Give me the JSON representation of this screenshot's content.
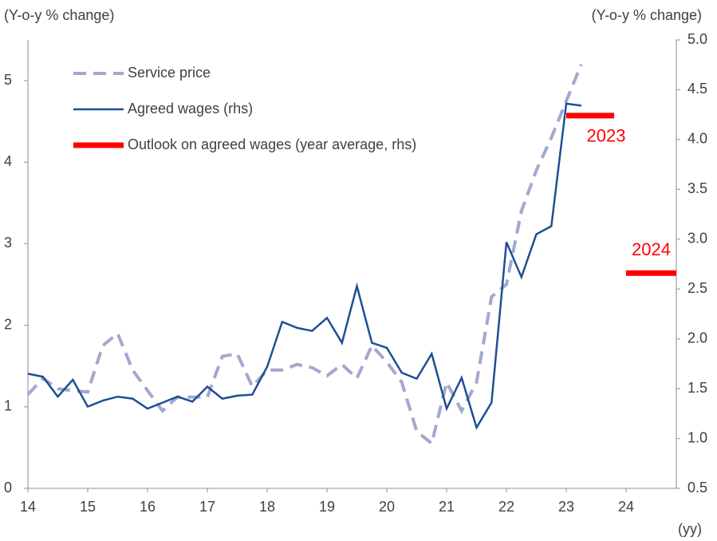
{
  "chart_data": {
    "type": "line",
    "y_label": "(Y-o-y % change)",
    "y2_label": "(Y-o-y % change)",
    "x_label": "(yy)",
    "xlim": [
      14,
      24.84
    ],
    "xticks": [
      14,
      15,
      16,
      17,
      18,
      19,
      20,
      21,
      22,
      23,
      24
    ],
    "ylim": [
      0,
      5.5
    ],
    "yticks": [
      0,
      1,
      2,
      3,
      4,
      5
    ],
    "y2lim": [
      0.5,
      5.0
    ],
    "y2ticks": [
      0.5,
      {
        "value": 1.0,
        "label": "1.0"
      },
      1.5,
      {
        "value": 2.0,
        "label": "2.0"
      },
      2.5,
      {
        "value": 3.0,
        "label": "3.0"
      },
      3.5,
      {
        "value": 4.0,
        "label": "4.0"
      },
      4.5,
      {
        "value": 5.0,
        "label": "5.0"
      }
    ],
    "legend": "upper left",
    "series": [
      {
        "name": "Service price",
        "color": "#a3a8d0",
        "style": "dashed",
        "x": [
          14,
          14.25,
          14.5,
          14.75,
          15,
          15.25,
          15.5,
          15.75,
          16,
          16.25,
          16.5,
          16.75,
          17,
          17.25,
          17.5,
          17.75,
          18,
          18.25,
          18.5,
          18.75,
          19,
          19.25,
          19.5,
          19.75,
          20,
          20.25,
          20.5,
          20.75,
          21,
          21.25,
          21.5,
          21.75,
          22,
          22.25,
          22.5,
          22.75,
          23,
          23.25
        ],
        "values": [
          1.15,
          1.35,
          1.22,
          1.2,
          1.18,
          1.75,
          1.9,
          1.45,
          1.2,
          0.95,
          1.12,
          1.12,
          1.12,
          1.62,
          1.65,
          1.25,
          1.45,
          1.45,
          1.52,
          1.48,
          1.38,
          1.52,
          1.35,
          1.75,
          1.55,
          1.3,
          0.7,
          0.55,
          1.3,
          0.95,
          1.3,
          2.35,
          2.5,
          3.4,
          3.9,
          4.3,
          4.75,
          5.2
        ]
      },
      {
        "name": "Agreed wages (rhs)",
        "color": "#1f4e96",
        "style": "solid",
        "axis": "y2",
        "x": [
          14,
          14.25,
          14.5,
          14.75,
          15,
          15.25,
          15.5,
          15.75,
          16,
          16.25,
          16.5,
          16.75,
          17,
          17.25,
          17.5,
          17.75,
          18,
          18.25,
          18.5,
          18.75,
          19,
          19.25,
          19.5,
          19.75,
          20,
          20.25,
          20.5,
          20.75,
          21,
          21.25,
          21.5,
          21.75,
          22,
          22.25,
          22.5,
          22.75,
          23,
          23.25
        ],
        "values": [
          1.65,
          1.62,
          1.42,
          1.59,
          1.32,
          1.38,
          1.42,
          1.4,
          1.3,
          1.36,
          1.42,
          1.37,
          1.52,
          1.4,
          1.43,
          1.44,
          1.72,
          2.17,
          2.11,
          2.08,
          2.21,
          1.96,
          2.53,
          1.96,
          1.91,
          1.66,
          1.6,
          1.85,
          1.3,
          1.61,
          1.11,
          1.36,
          2.97,
          2.62,
          3.05,
          3.13,
          4.36,
          4.34
        ]
      },
      {
        "name": "Outlook on agreed wages (year average, rhs)",
        "color": "#ff0000",
        "style": "thick",
        "axis": "y2",
        "x": [
          23,
          23.8,
          23.9,
          24,
          24.84
        ],
        "values": [
          4.24,
          4.24,
          null,
          2.66,
          2.66
        ]
      }
    ],
    "annotations": [
      "2023",
      "2024"
    ]
  }
}
